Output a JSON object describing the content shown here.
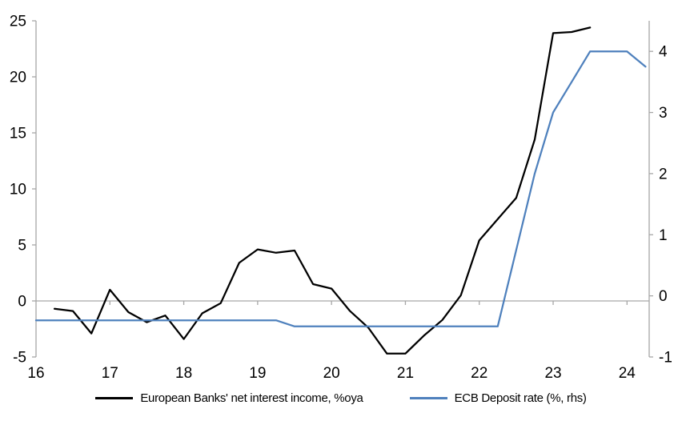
{
  "chart_data": {
    "type": "line",
    "title": "",
    "legend_position": "bottom-center",
    "grid": "zero-line-only",
    "x_axis": {
      "range": [
        16,
        24.3
      ],
      "ticks": [
        16,
        17,
        18,
        19,
        20,
        21,
        22,
        23,
        24
      ],
      "tick_labels": [
        "16",
        "17",
        "18",
        "19",
        "20",
        "21",
        "22",
        "23",
        "24"
      ]
    },
    "left_axis": {
      "range": [
        -5,
        25
      ],
      "ticks": [
        -5,
        0,
        5,
        10,
        15,
        20,
        25
      ],
      "tick_labels": [
        "-5",
        "0",
        "5",
        "10",
        "15",
        "20",
        "25"
      ]
    },
    "right_axis": {
      "range": [
        -1,
        4.5
      ],
      "ticks": [
        -1,
        0,
        1,
        2,
        3,
        4
      ],
      "tick_labels": [
        "-1",
        "0",
        "1",
        "2",
        "3",
        "4"
      ]
    },
    "series": [
      {
        "name": "European Banks' net interest income, %oya",
        "axis": "left",
        "color": "#000000",
        "x": [
          16.25,
          16.5,
          16.75,
          17.0,
          17.25,
          17.5,
          17.75,
          18.0,
          18.25,
          18.5,
          18.75,
          19.0,
          19.25,
          19.5,
          19.75,
          20.0,
          20.25,
          20.5,
          20.75,
          21.0,
          21.25,
          21.5,
          21.75,
          22.0,
          22.25,
          22.5,
          22.75,
          23.0,
          23.25,
          23.5
        ],
        "values": [
          -0.7,
          -0.9,
          -2.9,
          1.0,
          -1.0,
          -1.9,
          -1.3,
          -3.4,
          -1.1,
          -0.2,
          3.4,
          4.6,
          4.3,
          4.5,
          1.5,
          1.1,
          -0.9,
          -2.4,
          -4.7,
          -4.7,
          -3.1,
          -1.7,
          0.5,
          5.4,
          7.3,
          9.2,
          14.4,
          23.9,
          24.0,
          24.4
        ]
      },
      {
        "name": "ECB Deposit rate (%, rhs)",
        "axis": "right",
        "color": "#4F81BD",
        "x": [
          16.0,
          16.25,
          16.5,
          16.75,
          17.0,
          17.25,
          17.5,
          17.75,
          18.0,
          18.25,
          18.5,
          18.75,
          19.0,
          19.25,
          19.5,
          19.75,
          20.0,
          20.25,
          20.5,
          20.75,
          21.0,
          21.25,
          21.5,
          21.75,
          22.0,
          22.25,
          22.5,
          22.75,
          23.0,
          23.25,
          23.5,
          23.75,
          24.0,
          24.25
        ],
        "values": [
          -0.4,
          -0.4,
          -0.4,
          -0.4,
          -0.4,
          -0.4,
          -0.4,
          -0.4,
          -0.4,
          -0.4,
          -0.4,
          -0.4,
          -0.4,
          -0.4,
          -0.5,
          -0.5,
          -0.5,
          -0.5,
          -0.5,
          -0.5,
          -0.5,
          -0.5,
          -0.5,
          -0.5,
          -0.5,
          -0.5,
          0.75,
          2.0,
          3.0,
          3.5,
          4.0,
          4.0,
          4.0,
          3.75
        ]
      }
    ],
    "colors": {
      "axis_line": "#A6A6A6",
      "zero_gridline": "#A6A6A6",
      "text": "#000000",
      "background": "#FFFFFF"
    }
  }
}
